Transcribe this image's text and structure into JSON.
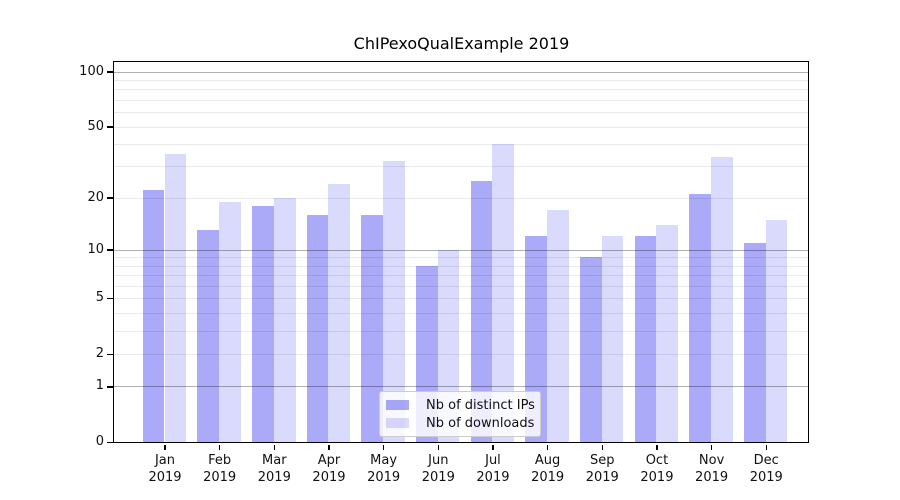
{
  "chart_data": {
    "type": "bar",
    "title": "ChIPexoQualExample 2019",
    "categories": [
      "Jan",
      "Feb",
      "Mar",
      "Apr",
      "May",
      "Jun",
      "Jul",
      "Aug",
      "Sep",
      "Oct",
      "Nov",
      "Dec"
    ],
    "category_year": "2019",
    "series": [
      {
        "name": "Nb of distinct IPs",
        "color": "rgba(20,20,235,0.36)",
        "values": [
          22,
          13,
          18,
          16,
          16,
          8,
          25,
          12,
          9,
          12,
          21,
          11
        ]
      },
      {
        "name": "Nb of downloads",
        "color": "rgba(20,20,235,0.155)",
        "values": [
          35,
          19,
          20,
          24,
          32,
          10,
          40,
          17,
          12,
          14,
          34,
          15
        ]
      }
    ],
    "xlabel": "",
    "ylabel": "",
    "yscale": "log1p",
    "ylim": [
      0,
      113
    ],
    "yticks": [
      100,
      50,
      20,
      10,
      5,
      2,
      1,
      0
    ],
    "grid": {
      "major_lines": [
        1,
        10,
        100
      ],
      "minor_lines": [
        2,
        3,
        4,
        5,
        6,
        7,
        8,
        9,
        20,
        30,
        40,
        50,
        60,
        70,
        80,
        90
      ]
    },
    "legend": {
      "position": "lower-center-inside"
    }
  },
  "colors": {
    "background": "#ffffff",
    "spine": "#000000",
    "bar_dark": "rgba(20,20,235,0.36)",
    "bar_light": "rgba(20,20,235,0.155)",
    "text": "#111111"
  }
}
